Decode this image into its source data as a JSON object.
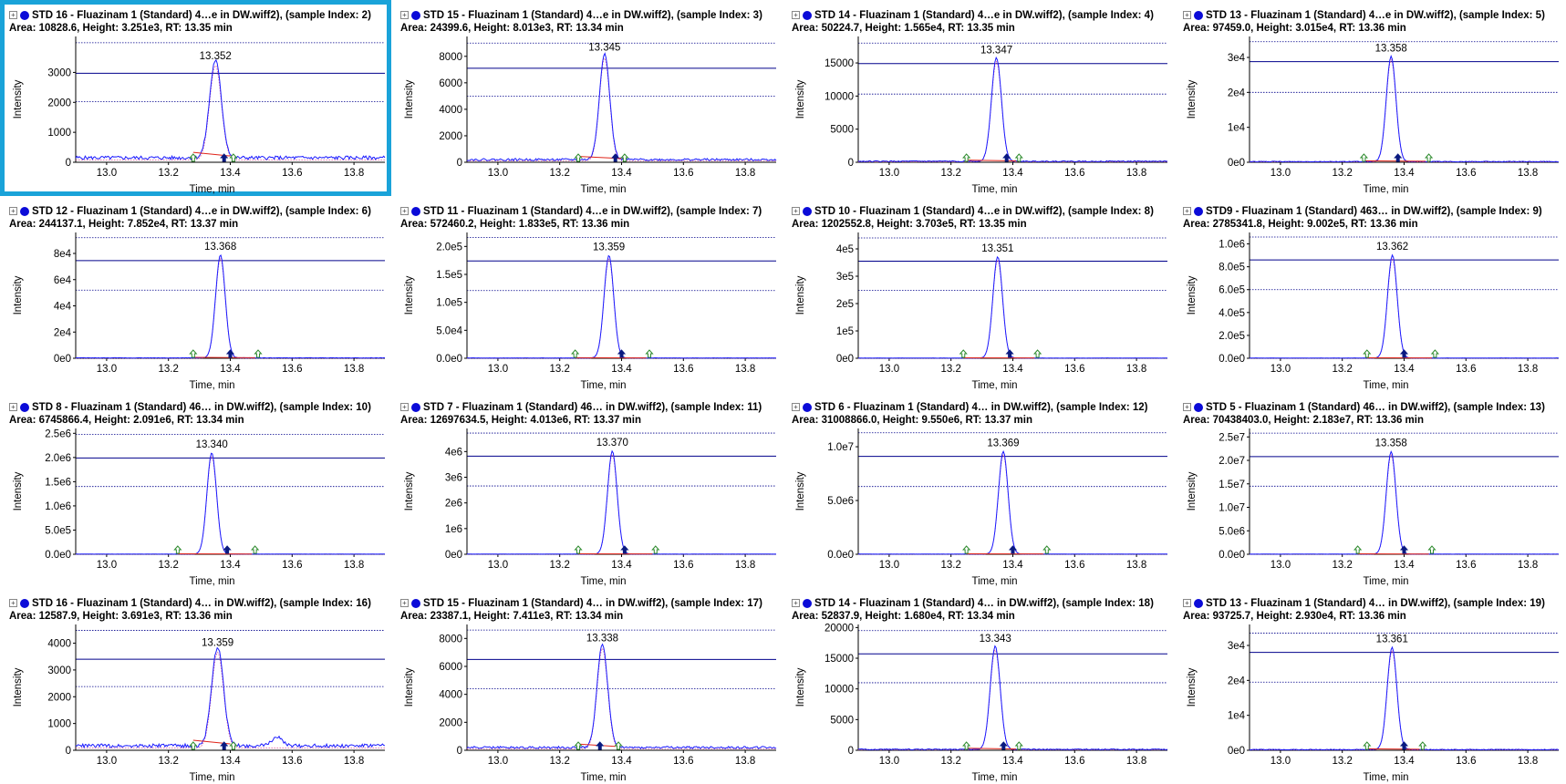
{
  "colors": {
    "trace": "#1a1aff",
    "baseline": "#e0241a",
    "guide": "#00008b",
    "selection": "#1aa3d9",
    "marker_start": "#2e8b2e",
    "marker_apex": "#0a1a80"
  },
  "icons": {
    "expander": "plus-box-icon",
    "series": "blue-dot-icon"
  },
  "chart_data": [
    {
      "type": "line",
      "title": "STD 16 - Fluazinam 1 (Standard) 4…e in DW.wiff2), (sample Index: 2)",
      "subtitle": "Area: 10828.6, Height: 3.251e3, RT: 13.35 min",
      "xlabel": "Time, min",
      "ylabel": "Intensity",
      "xlim": [
        12.9,
        13.9
      ],
      "xticks": [
        "13.0",
        "13.2",
        "13.4",
        "13.6",
        "13.8"
      ],
      "ylim": [
        0,
        4200
      ],
      "yticks": [
        {
          "v": 0,
          "label": "0"
        },
        {
          "v": 1000,
          "label": "1000"
        },
        {
          "v": 2000,
          "label": "2000"
        },
        {
          "v": 3000,
          "label": "3000"
        }
      ],
      "apex_label": "13.352",
      "rt": 13.352,
      "height": 3251,
      "width": 0.038,
      "bg": 150,
      "guides": [
        2970,
        2020,
        3990
      ],
      "noisy": true,
      "selected": true,
      "marks": {
        "start": 13.28,
        "apex": 13.38,
        "end": 13.39
      }
    },
    {
      "type": "line",
      "title": "STD 15 - Fluazinam 1 (Standard) 4…e in DW.wiff2), (sample Index: 3)",
      "subtitle": "Area: 24399.6, Height: 8.013e3, RT: 13.34 min",
      "xlabel": "Time, min",
      "ylabel": "Intensity",
      "xlim": [
        12.9,
        13.9
      ],
      "xticks": [
        "13.0",
        "13.2",
        "13.4",
        "13.6",
        "13.8"
      ],
      "ylim": [
        0,
        9500
      ],
      "yticks": [
        {
          "v": 0,
          "label": "0"
        },
        {
          "v": 2000,
          "label": "2000"
        },
        {
          "v": 4000,
          "label": "4000"
        },
        {
          "v": 6000,
          "label": "6000"
        },
        {
          "v": 8000,
          "label": "8000"
        }
      ],
      "apex_label": "13.345",
      "rt": 13.345,
      "height": 8013,
      "width": 0.033,
      "bg": 200,
      "guides": [
        7100,
        5000,
        9000
      ],
      "noisy": true,
      "selected": false,
      "marks": {
        "start": 13.26,
        "apex": 13.38,
        "end": 13.39
      }
    },
    {
      "type": "line",
      "title": "STD 14 - Fluazinam 1 (Standard) 4…e in DW.wiff2), (sample Index: 4)",
      "subtitle": "Area: 50224.7, Height: 1.565e4, RT: 13.35 min",
      "xlabel": "Time, min",
      "ylabel": "Intensity",
      "xlim": [
        12.9,
        13.9
      ],
      "xticks": [
        "13.0",
        "13.2",
        "13.4",
        "13.6",
        "13.8"
      ],
      "ylim": [
        0,
        19000
      ],
      "yticks": [
        {
          "v": 0,
          "label": "0"
        },
        {
          "v": 5000,
          "label": "5000"
        },
        {
          "v": 10000,
          "label": "10000"
        },
        {
          "v": 15000,
          "label": "15000"
        }
      ],
      "apex_label": "13.347",
      "rt": 13.347,
      "height": 15650,
      "width": 0.032,
      "bg": 150,
      "guides": [
        14900,
        10300,
        18000
      ],
      "noisy": false,
      "selected": false,
      "marks": {
        "start": 13.25,
        "apex": 13.38,
        "end": 13.4
      }
    },
    {
      "type": "line",
      "title": "STD 13 - Fluazinam 1 (Standard) 4…e in DW.wiff2), (sample Index: 5)",
      "subtitle": "Area: 97459.0, Height: 3.015e4, RT: 13.36 min",
      "xlabel": "Time, min",
      "ylabel": "Intensity",
      "xlim": [
        12.9,
        13.9
      ],
      "xticks": [
        "13.0",
        "13.2",
        "13.4",
        "13.6",
        "13.8"
      ],
      "ylim": [
        0,
        36000
      ],
      "yticks": [
        {
          "v": 0,
          "label": "0e0"
        },
        {
          "v": 10000,
          "label": "1e4"
        },
        {
          "v": 20000,
          "label": "2e4"
        },
        {
          "v": 30000,
          "label": "3e4"
        }
      ],
      "apex_label": "13.358",
      "rt": 13.358,
      "height": 30150,
      "width": 0.031,
      "bg": 200,
      "guides": [
        28800,
        20000,
        34500
      ],
      "noisy": false,
      "selected": false,
      "marks": {
        "start": 13.27,
        "apex": 13.38,
        "end": 13.46
      }
    },
    {
      "type": "line",
      "title": "STD 12 - Fluazinam 1 (Standard) 4…e in DW.wiff2), (sample Index: 6)",
      "subtitle": "Area: 244137.1, Height: 7.852e4, RT: 13.37 min",
      "xlabel": "Time, min",
      "ylabel": "Intensity",
      "xlim": [
        12.9,
        13.9
      ],
      "xticks": [
        "13.0",
        "13.2",
        "13.4",
        "13.6",
        "13.8"
      ],
      "ylim": [
        0,
        96000
      ],
      "yticks": [
        {
          "v": 0,
          "label": "0e0"
        },
        {
          "v": 20000,
          "label": "2e4"
        },
        {
          "v": 40000,
          "label": "4e4"
        },
        {
          "v": 60000,
          "label": "6e4"
        },
        {
          "v": 80000,
          "label": "8e4"
        }
      ],
      "apex_label": "13.368",
      "rt": 13.368,
      "height": 78520,
      "width": 0.031,
      "bg": 300,
      "guides": [
        74500,
        52000,
        92000
      ],
      "noisy": false,
      "selected": false,
      "marks": {
        "start": 13.28,
        "apex": 13.4,
        "end": 13.47
      }
    },
    {
      "type": "line",
      "title": "STD 11 - Fluazinam 1 (Standard) 4…e in DW.wiff2), (sample Index: 7)",
      "subtitle": "Area: 572460.2, Height: 1.833e5, RT: 13.36 min",
      "xlabel": "Time, min",
      "ylabel": "Intensity",
      "xlim": [
        12.9,
        13.9
      ],
      "xticks": [
        "13.0",
        "13.2",
        "13.4",
        "13.6",
        "13.8"
      ],
      "ylim": [
        0,
        225000
      ],
      "yticks": [
        {
          "v": 0,
          "label": "0.0e0"
        },
        {
          "v": 50000,
          "label": "5.0e4"
        },
        {
          "v": 100000,
          "label": "1.0e5"
        },
        {
          "v": 150000,
          "label": "1.5e5"
        },
        {
          "v": 200000,
          "label": "2.0e5"
        }
      ],
      "apex_label": "13.359",
      "rt": 13.359,
      "height": 183300,
      "width": 0.031,
      "bg": 500,
      "guides": [
        174000,
        121000,
        216000
      ],
      "noisy": false,
      "selected": false,
      "marks": {
        "start": 13.25,
        "apex": 13.4,
        "end": 13.47
      }
    },
    {
      "type": "line",
      "title": "STD 10 - Fluazinam 1 (Standard) 4…e in DW.wiff2), (sample Index: 8)",
      "subtitle": "Area: 1202552.8, Height: 3.703e5, RT: 13.35 min",
      "xlabel": "Time, min",
      "ylabel": "Intensity",
      "xlim": [
        12.9,
        13.9
      ],
      "xticks": [
        "13.0",
        "13.2",
        "13.4",
        "13.6",
        "13.8"
      ],
      "ylim": [
        0,
        460000
      ],
      "yticks": [
        {
          "v": 0,
          "label": "0e0"
        },
        {
          "v": 100000,
          "label": "1e5"
        },
        {
          "v": 200000,
          "label": "2e5"
        },
        {
          "v": 300000,
          "label": "3e5"
        },
        {
          "v": 400000,
          "label": "4e5"
        }
      ],
      "apex_label": "13.351",
      "rt": 13.351,
      "height": 370300,
      "width": 0.031,
      "bg": 800,
      "guides": [
        355000,
        248000,
        440000
      ],
      "noisy": false,
      "selected": false,
      "marks": {
        "start": 13.24,
        "apex": 13.39,
        "end": 13.46
      }
    },
    {
      "type": "line",
      "title": "STD9 - Fluazinam 1 (Standard) 463… in DW.wiff2), (sample Index: 9)",
      "subtitle": "Area: 2785341.8, Height: 9.002e5, RT: 13.36 min",
      "xlabel": "Time, min",
      "ylabel": "Intensity",
      "xlim": [
        12.9,
        13.9
      ],
      "xticks": [
        "13.0",
        "13.2",
        "13.4",
        "13.6",
        "13.8"
      ],
      "ylim": [
        0,
        1100000
      ],
      "yticks": [
        {
          "v": 0,
          "label": "0.0e0"
        },
        {
          "v": 200000,
          "label": "2.0e5"
        },
        {
          "v": 400000,
          "label": "4.0e5"
        },
        {
          "v": 600000,
          "label": "6.0e5"
        },
        {
          "v": 800000,
          "label": "8.0e5"
        },
        {
          "v": 1000000,
          "label": "1.0e6"
        }
      ],
      "apex_label": "13.362",
      "rt": 13.362,
      "height": 900200,
      "width": 0.031,
      "bg": 2000,
      "guides": [
        860000,
        600000,
        1060000
      ],
      "noisy": false,
      "selected": false,
      "marks": {
        "start": 13.28,
        "apex": 13.4,
        "end": 13.48
      }
    },
    {
      "type": "line",
      "title": "STD 8 - Fluazinam 1 (Standard) 46… in DW.wiff2), (sample Index: 10)",
      "subtitle": "Area: 6745866.4, Height: 2.091e6, RT: 13.34 min",
      "xlabel": "Time, min",
      "ylabel": "Intensity",
      "xlim": [
        12.9,
        13.9
      ],
      "xticks": [
        "13.0",
        "13.2",
        "13.4",
        "13.6",
        "13.8"
      ],
      "ylim": [
        0,
        2600000
      ],
      "yticks": [
        {
          "v": 0,
          "label": "0.0e0"
        },
        {
          "v": 500000,
          "label": "5.0e5"
        },
        {
          "v": 1000000,
          "label": "1.0e6"
        },
        {
          "v": 1500000,
          "label": "1.5e6"
        },
        {
          "v": 2000000,
          "label": "2.0e6"
        },
        {
          "v": 2500000,
          "label": "2.5e6"
        }
      ],
      "apex_label": "13.340",
      "rt": 13.34,
      "height": 2091000,
      "width": 0.031,
      "bg": 4000,
      "guides": [
        1990000,
        1400000,
        2480000
      ],
      "noisy": false,
      "selected": false,
      "marks": {
        "start": 13.23,
        "apex": 13.39,
        "end": 13.46
      }
    },
    {
      "type": "line",
      "title": "STD 7 - Fluazinam 1 (Standard) 46… in DW.wiff2), (sample Index: 11)",
      "subtitle": "Area: 12697634.5, Height: 4.013e6, RT: 13.37 min",
      "xlabel": "Time, min",
      "ylabel": "Intensity",
      "xlim": [
        12.9,
        13.9
      ],
      "xticks": [
        "13.0",
        "13.2",
        "13.4",
        "13.6",
        "13.8"
      ],
      "ylim": [
        0,
        4900000
      ],
      "yticks": [
        {
          "v": 0,
          "label": "0e0"
        },
        {
          "v": 1000000,
          "label": "1e6"
        },
        {
          "v": 2000000,
          "label": "2e6"
        },
        {
          "v": 3000000,
          "label": "3e6"
        },
        {
          "v": 4000000,
          "label": "4e6"
        }
      ],
      "apex_label": "13.370",
      "rt": 13.37,
      "height": 4013000,
      "width": 0.031,
      "bg": 8000,
      "guides": [
        3820000,
        2660000,
        4720000
      ],
      "noisy": false,
      "selected": false,
      "marks": {
        "start": 13.26,
        "apex": 13.41,
        "end": 13.49
      }
    },
    {
      "type": "line",
      "title": "STD 6 - Fluazinam 1 (Standard) 4… in DW.wiff2), (sample Index: 12)",
      "subtitle": "Area: 31008866.0, Height: 9.550e6, RT: 13.37 min",
      "xlabel": "Time, min",
      "ylabel": "Intensity",
      "xlim": [
        12.9,
        13.9
      ],
      "xticks": [
        "13.0",
        "13.2",
        "13.4",
        "13.6",
        "13.8"
      ],
      "ylim": [
        0,
        11700000
      ],
      "yticks": [
        {
          "v": 0,
          "label": "0.0e0"
        },
        {
          "v": 5000000,
          "label": "5.0e6"
        },
        {
          "v": 10000000,
          "label": "1.0e7"
        }
      ],
      "apex_label": "13.369",
      "rt": 13.369,
      "height": 9550000,
      "width": 0.031,
      "bg": 20000,
      "guides": [
        9100000,
        6300000,
        11300000
      ],
      "noisy": false,
      "selected": false,
      "marks": {
        "start": 13.25,
        "apex": 13.4,
        "end": 13.49
      }
    },
    {
      "type": "line",
      "title": "STD 5 - Fluazinam 1 (Standard) 46… in DW.wiff2), (sample Index: 13)",
      "subtitle": "Area: 70438403.0, Height: 2.183e7, RT: 13.36 min",
      "xlabel": "Time, min",
      "ylabel": "Intensity",
      "xlim": [
        12.9,
        13.9
      ],
      "xticks": [
        "13.0",
        "13.2",
        "13.4",
        "13.6",
        "13.8"
      ],
      "ylim": [
        0,
        26800000
      ],
      "yticks": [
        {
          "v": 0,
          "label": "0.0e0"
        },
        {
          "v": 5000000,
          "label": "5.0e6"
        },
        {
          "v": 10000000,
          "label": "1.0e7"
        },
        {
          "v": 15000000,
          "label": "1.5e7"
        },
        {
          "v": 20000000,
          "label": "2.0e7"
        },
        {
          "v": 25000000,
          "label": "2.5e7"
        }
      ],
      "apex_label": "13.358",
      "rt": 13.358,
      "height": 21830000,
      "width": 0.031,
      "bg": 40000,
      "guides": [
        20800000,
        14500000,
        25800000
      ],
      "noisy": false,
      "selected": false,
      "marks": {
        "start": 13.25,
        "apex": 13.4,
        "end": 13.47
      }
    },
    {
      "type": "line",
      "title": "STD 16 - Fluazinam 1 (Standard) 4… in DW.wiff2), (sample Index: 16)",
      "subtitle": "Area: 12587.9, Height: 3.691e3, RT: 13.36 min",
      "xlabel": "Time, min",
      "ylabel": "Intensity",
      "xlim": [
        12.9,
        13.9
      ],
      "xticks": [
        "13.0",
        "13.2",
        "13.4",
        "13.6",
        "13.8"
      ],
      "ylim": [
        0,
        4700
      ],
      "yticks": [
        {
          "v": 0,
          "label": "0"
        },
        {
          "v": 1000,
          "label": "1000"
        },
        {
          "v": 2000,
          "label": "2000"
        },
        {
          "v": 3000,
          "label": "3000"
        },
        {
          "v": 4000,
          "label": "4000"
        }
      ],
      "apex_label": "13.359",
      "rt": 13.359,
      "height": 3691,
      "width": 0.038,
      "bg": 170,
      "guides": [
        3400,
        2380,
        4480
      ],
      "noisy": true,
      "selected": false,
      "marks": {
        "start": 13.28,
        "apex": 13.38,
        "end": 13.39
      }
    },
    {
      "type": "line",
      "title": "STD 15 - Fluazinam 1 (Standard) 4… in DW.wiff2), (sample Index: 17)",
      "subtitle": "Area: 23387.1, Height: 7.411e3, RT: 13.34 min",
      "xlabel": "Time, min",
      "ylabel": "Intensity",
      "xlim": [
        12.9,
        13.9
      ],
      "xticks": [
        "13.0",
        "13.2",
        "13.4",
        "13.6",
        "13.8"
      ],
      "ylim": [
        0,
        9000
      ],
      "yticks": [
        {
          "v": 0,
          "label": "0"
        },
        {
          "v": 2000,
          "label": "2000"
        },
        {
          "v": 4000,
          "label": "4000"
        },
        {
          "v": 6000,
          "label": "6000"
        },
        {
          "v": 8000,
          "label": "8000"
        }
      ],
      "apex_label": "13.338",
      "rt": 13.338,
      "height": 7411,
      "width": 0.034,
      "bg": 200,
      "guides": [
        6500,
        4400,
        8600
      ],
      "noisy": true,
      "selected": false,
      "marks": {
        "start": 13.26,
        "apex": 13.33,
        "end": 13.37
      }
    },
    {
      "type": "line",
      "title": "STD 14 - Fluazinam 1 (Standard) 4… in DW.wiff2), (sample Index: 18)",
      "subtitle": "Area: 52837.9, Height: 1.680e4, RT: 13.34 min",
      "xlabel": "Time, min",
      "ylabel": "Intensity",
      "xlim": [
        12.9,
        13.9
      ],
      "xticks": [
        "13.0",
        "13.2",
        "13.4",
        "13.6",
        "13.8"
      ],
      "ylim": [
        0,
        20500
      ],
      "yticks": [
        {
          "v": 0,
          "label": "0"
        },
        {
          "v": 5000,
          "label": "5000"
        },
        {
          "v": 10000,
          "label": "10000"
        },
        {
          "v": 15000,
          "label": "15000"
        },
        {
          "v": 20000,
          "label": "20000"
        }
      ],
      "apex_label": "13.343",
      "rt": 13.343,
      "height": 16800,
      "width": 0.032,
      "bg": 150,
      "guides": [
        15700,
        11000,
        19500
      ],
      "noisy": false,
      "selected": false,
      "marks": {
        "start": 13.25,
        "apex": 13.37,
        "end": 13.4
      }
    },
    {
      "type": "line",
      "title": "STD 13 - Fluazinam 1 (Standard) 4… in DW.wiff2), (sample Index: 19)",
      "subtitle": "Area: 93725.7, Height: 2.930e4, RT: 13.36 min",
      "xlabel": "Time, min",
      "ylabel": "Intensity",
      "xlim": [
        12.9,
        13.9
      ],
      "xticks": [
        "13.0",
        "13.2",
        "13.4",
        "13.6",
        "13.8"
      ],
      "ylim": [
        0,
        36000
      ],
      "yticks": [
        {
          "v": 0,
          "label": "0e0"
        },
        {
          "v": 10000,
          "label": "1e4"
        },
        {
          "v": 20000,
          "label": "2e4"
        },
        {
          "v": 30000,
          "label": "3e4"
        }
      ],
      "apex_label": "13.361",
      "rt": 13.361,
      "height": 29300,
      "width": 0.031,
      "bg": 200,
      "guides": [
        28000,
        19500,
        33500
      ],
      "noisy": false,
      "selected": false,
      "marks": {
        "start": 13.28,
        "apex": 13.4,
        "end": 13.44
      }
    }
  ]
}
